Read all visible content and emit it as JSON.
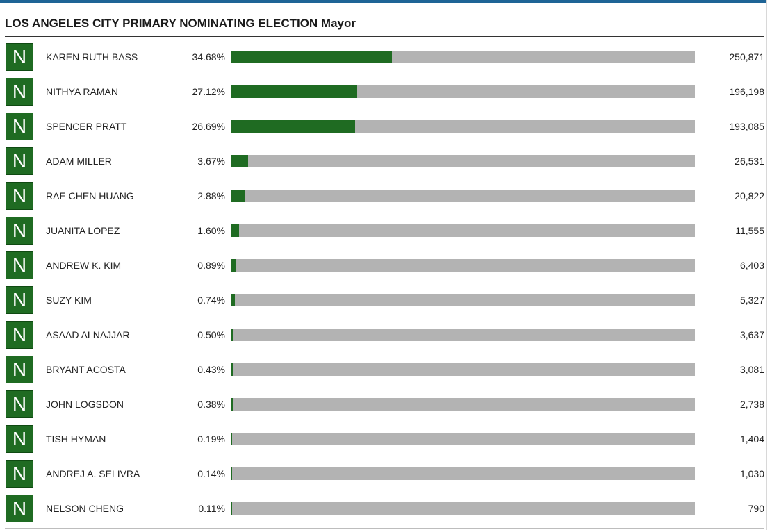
{
  "header": {
    "title": "LOS ANGELES CITY PRIMARY NOMINATING ELECTION Mayor"
  },
  "colors": {
    "accent_top": "#1e6496",
    "badge": "#1f6b22",
    "bar_fill": "#1f6b22",
    "bar_track": "#b3b3b3"
  },
  "candidates": [
    {
      "badge": "N",
      "name": "KAREN RUTH BASS",
      "percent_label": "34.68%",
      "percent": 34.68,
      "votes": "250,871"
    },
    {
      "badge": "N",
      "name": "NITHYA RAMAN",
      "percent_label": "27.12%",
      "percent": 27.12,
      "votes": "196,198"
    },
    {
      "badge": "N",
      "name": "SPENCER PRATT",
      "percent_label": "26.69%",
      "percent": 26.69,
      "votes": "193,085"
    },
    {
      "badge": "N",
      "name": "ADAM MILLER",
      "percent_label": "3.67%",
      "percent": 3.67,
      "votes": "26,531"
    },
    {
      "badge": "N",
      "name": "RAE CHEN HUANG",
      "percent_label": "2.88%",
      "percent": 2.88,
      "votes": "20,822"
    },
    {
      "badge": "N",
      "name": "JUANITA LOPEZ",
      "percent_label": "1.60%",
      "percent": 1.6,
      "votes": "11,555"
    },
    {
      "badge": "N",
      "name": "ANDREW K. KIM",
      "percent_label": "0.89%",
      "percent": 0.89,
      "votes": "6,403"
    },
    {
      "badge": "N",
      "name": "SUZY KIM",
      "percent_label": "0.74%",
      "percent": 0.74,
      "votes": "5,327"
    },
    {
      "badge": "N",
      "name": "ASAAD ALNAJJAR",
      "percent_label": "0.50%",
      "percent": 0.5,
      "votes": "3,637"
    },
    {
      "badge": "N",
      "name": "BRYANT ACOSTA",
      "percent_label": "0.43%",
      "percent": 0.43,
      "votes": "3,081"
    },
    {
      "badge": "N",
      "name": "JOHN LOGSDON",
      "percent_label": "0.38%",
      "percent": 0.38,
      "votes": "2,738"
    },
    {
      "badge": "N",
      "name": "TISH HYMAN",
      "percent_label": "0.19%",
      "percent": 0.19,
      "votes": "1,404"
    },
    {
      "badge": "N",
      "name": "ANDREJ A. SELIVRA",
      "percent_label": "0.14%",
      "percent": 0.14,
      "votes": "1,030"
    },
    {
      "badge": "N",
      "name": "NELSON CHENG",
      "percent_label": "0.11%",
      "percent": 0.11,
      "votes": "790"
    }
  ]
}
